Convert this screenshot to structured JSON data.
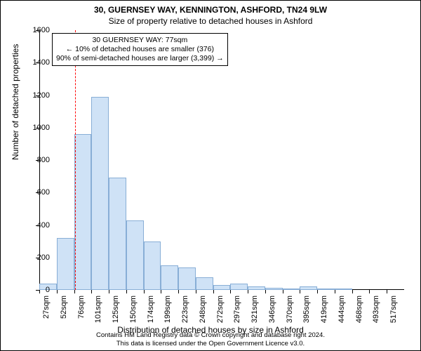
{
  "titles": {
    "line1": "30, GUERNSEY WAY, KENNINGTON, ASHFORD, TN24 9LW",
    "line2": "Size of property relative to detached houses in Ashford"
  },
  "axes": {
    "ylabel": "Number of detached properties",
    "xlabel": "Distribution of detached houses by size in Ashford"
  },
  "chart": {
    "type": "histogram",
    "ylim": [
      0,
      1600
    ],
    "ytick_step": 200,
    "x_start": 27,
    "x_step": 24.5,
    "x_unit": "sqm",
    "x_count": 21,
    "bar_fill": "#cfe2f6",
    "bar_border": "#88aed6",
    "background": "#ffffff",
    "values": [
      40,
      320,
      960,
      1190,
      690,
      430,
      300,
      150,
      140,
      80,
      30,
      40,
      20,
      15,
      10,
      20,
      5,
      5,
      0,
      0,
      0
    ],
    "marker": {
      "x_value": 77,
      "color": "#ff0000"
    }
  },
  "callout": {
    "line1": "30 GUERNSEY WAY: 77sqm",
    "line2": "← 10% of detached houses are smaller (376)",
    "line3": "90% of semi-detached houses are larger (3,399) →"
  },
  "footer": {
    "line1": "Contains HM Land Registry data © Crown copyright and database right 2024.",
    "line2": "This data is licensed under the Open Government Licence v3.0."
  },
  "style": {
    "title_fontsize": 12,
    "axis_fontsize": 12,
    "tick_fontsize": 11,
    "callout_fontsize": 10.5,
    "footer_fontsize": 9.5,
    "text_color": "#000000"
  }
}
